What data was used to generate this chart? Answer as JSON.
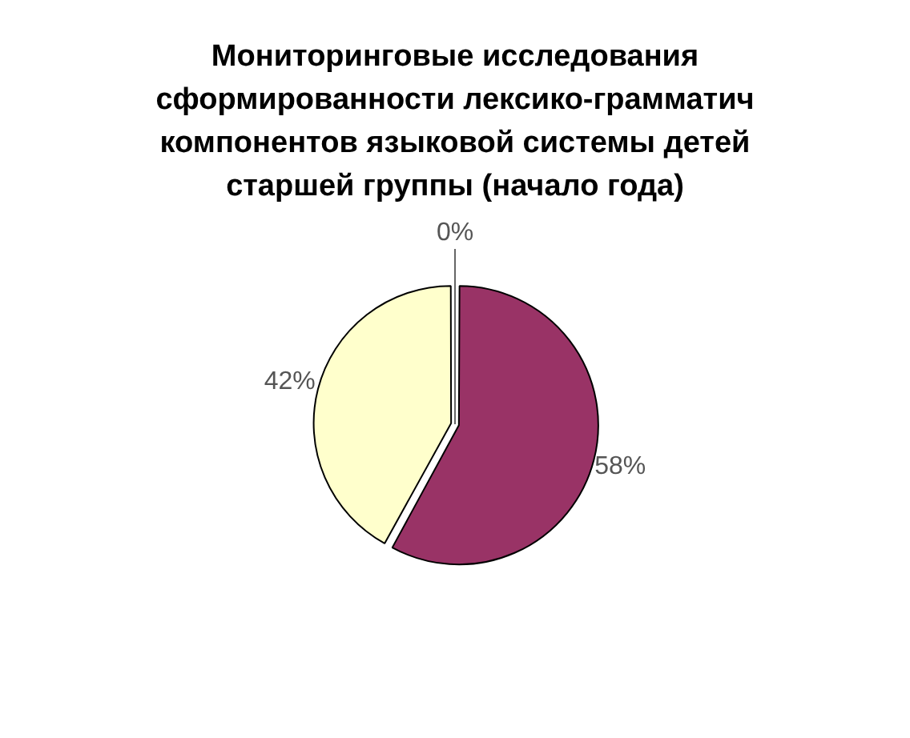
{
  "chart_data": {
    "type": "pie",
    "title": "Мониторинговые исследования сформированности лексико-грамматич компонентов языковой системы детей старшей группы (начало года)",
    "categories": [
      null,
      null,
      null
    ],
    "values": [
      58,
      42,
      0
    ],
    "colors": [
      "#993366",
      "#ffffcc",
      "#ccffff"
    ],
    "value_labels": [
      "58%",
      "42%",
      "0%"
    ],
    "legend": false
  }
}
